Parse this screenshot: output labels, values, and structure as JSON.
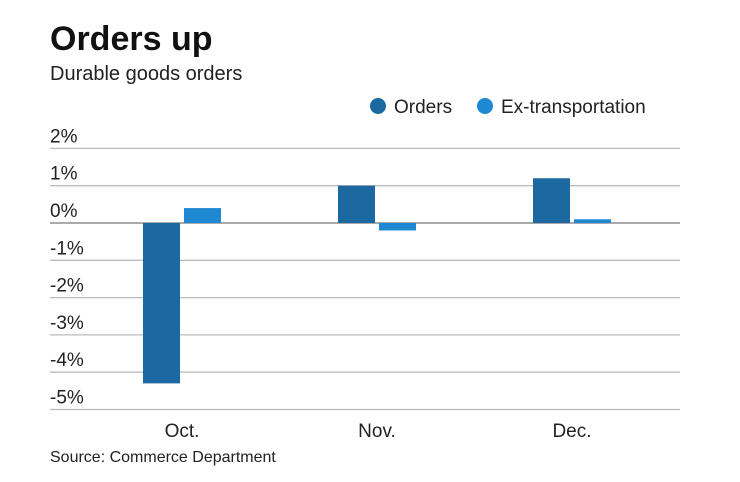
{
  "chart_data": {
    "type": "bar",
    "title": "Orders up",
    "subtitle": "Durable goods orders",
    "source": "Source: Commerce Department",
    "categories": [
      "Oct.",
      "Nov.",
      "Dec."
    ],
    "series": [
      {
        "name": "Orders",
        "values": [
          -4.3,
          1.0,
          1.2
        ],
        "color": "#1c69a1"
      },
      {
        "name": "Ex-transportation",
        "values": [
          0.4,
          -0.2,
          0.1
        ],
        "color": "#1f88d2"
      }
    ],
    "ylim": [
      -5,
      2
    ],
    "yticks": [
      2,
      1,
      0,
      -1,
      -2,
      -3,
      -4,
      -5
    ],
    "ytick_labels": [
      "2%",
      "1%",
      "0%",
      "-1%",
      "-2%",
      "-3%",
      "-4%",
      "-5%"
    ],
    "grid": true,
    "legend": "top-right"
  }
}
